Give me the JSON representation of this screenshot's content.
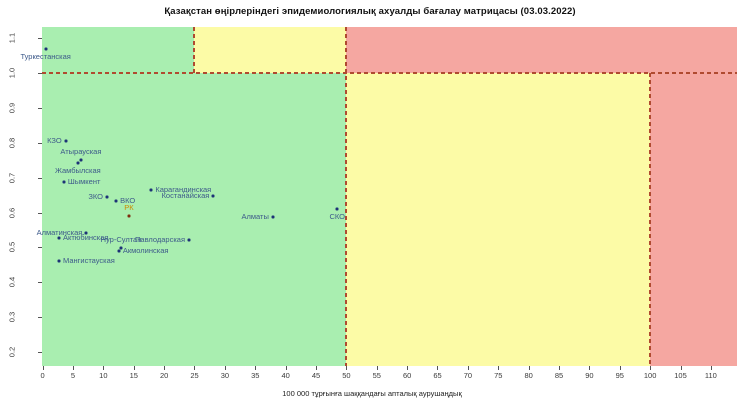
{
  "title": "Қазақстан өңірлеріндегі эпидемиологиялық ахуалды бағалау матрицасы (03.03.2022)",
  "chart_data": {
    "type": "scatter",
    "title": "Қазақстан өңірлеріндегі эпидемиологиялық ахуалды бағалау матрицасы (03.03.2022)",
    "xlabel": "100 000 тұрғынға шаққандағы апталық аурушаңдық",
    "ylabel": "",
    "xlim": [
      -0.1,
      114.3
    ],
    "ylim": [
      0.16,
      1.132
    ],
    "x_ticks": [
      0,
      5,
      10,
      15,
      20,
      25,
      30,
      35,
      40,
      45,
      50,
      55,
      60,
      65,
      70,
      75,
      80,
      85,
      90,
      95,
      100,
      105,
      110
    ],
    "y_ticks": [
      "1.1",
      "1.0",
      "0.9",
      "0.8",
      "0.7",
      "0.6",
      "0.5",
      "0.4",
      "0.3",
      "0.2"
    ],
    "grid": false,
    "legend": "none",
    "zones": {
      "threshold_y": 1.0,
      "upper_green_max": 25,
      "upper_yellow_max": 50,
      "lower_green_max": 50,
      "lower_yellow_max": 100,
      "colors": {
        "green": "#a9eeb0",
        "yellow": "#fcfba6",
        "red": "#f5a7a1"
      },
      "dashed_line_color": "#b04a30"
    },
    "marker_color": "#1c3276",
    "label_color": "#3d5a8a",
    "points": [
      {
        "label": "Туркестанская",
        "x": 0.5,
        "y": 1.068,
        "pos": "below"
      },
      {
        "label": "КЗО",
        "x": 3.8,
        "y": 0.805,
        "pos": "left"
      },
      {
        "label": "Атырауская",
        "x": 6.3,
        "y": 0.75,
        "pos": "above"
      },
      {
        "label": "Жамбылская",
        "x": 5.8,
        "y": 0.742,
        "pos": "below"
      },
      {
        "label": "Шымкент",
        "x": 3.5,
        "y": 0.687,
        "pos": "right"
      },
      {
        "label": "ЗКО",
        "x": 10.6,
        "y": 0.645,
        "pos": "left"
      },
      {
        "label": "ВКО",
        "x": 12.1,
        "y": 0.632,
        "pos": "right"
      },
      {
        "label": "РК",
        "x": 14.2,
        "y": 0.591,
        "pos": "above",
        "marker_color": "#7e2d0e",
        "label_color": "#cc8a00"
      },
      {
        "label": "Карагандинская",
        "x": 17.9,
        "y": 0.666,
        "pos": "right"
      },
      {
        "label": "Костанайская",
        "x": 28.1,
        "y": 0.648,
        "pos": "left"
      },
      {
        "label": "Алматы",
        "x": 37.9,
        "y": 0.586,
        "pos": "left"
      },
      {
        "label": "СКО",
        "x": 48.5,
        "y": 0.609,
        "pos": "below"
      },
      {
        "label": "Алматинская",
        "x": 7.2,
        "y": 0.542,
        "pos": "left"
      },
      {
        "label": "Актюбинская",
        "x": 2.7,
        "y": 0.526,
        "pos": "right"
      },
      {
        "label": "Нур-Султан",
        "x": 12.9,
        "y": 0.497,
        "pos": "above"
      },
      {
        "label": "Акмолинская",
        "x": 12.55,
        "y": 0.49,
        "pos": "right"
      },
      {
        "label": "Павлодарская",
        "x": 24.1,
        "y": 0.52,
        "pos": "left"
      },
      {
        "label": "Мангистауская",
        "x": 2.7,
        "y": 0.461,
        "pos": "right"
      }
    ]
  }
}
